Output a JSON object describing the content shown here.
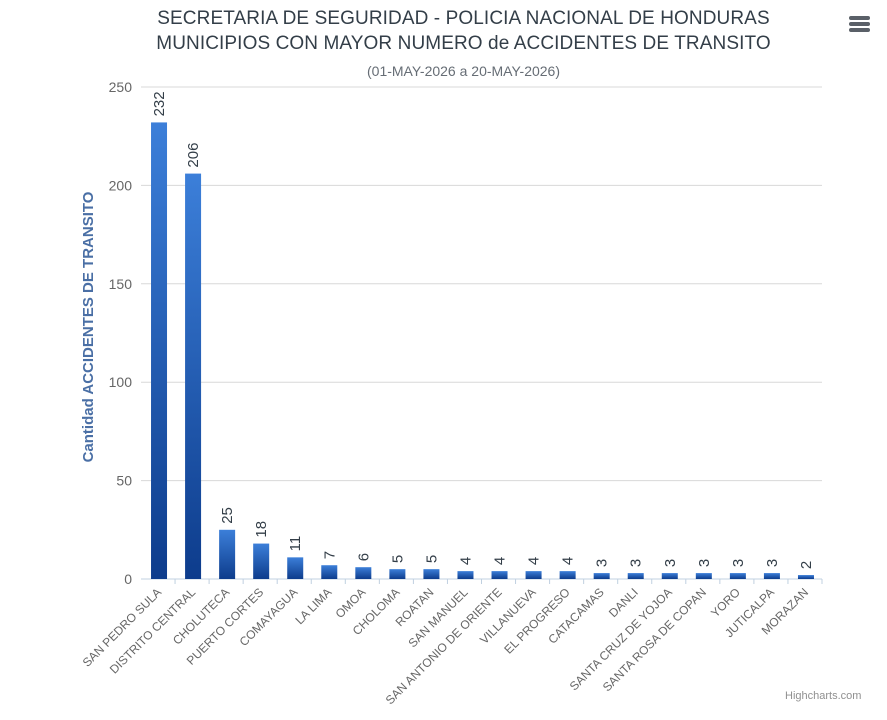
{
  "header": {
    "title_line1": "SECRETARIA DE SEGURIDAD - POLICIA NACIONAL DE HONDURAS",
    "title_line2": "MUNICIPIOS CON MAYOR NUMERO de ACCIDENTES DE TRANSITO",
    "subtitle": "(01-MAY-2026 a 20-MAY-2026)"
  },
  "menu": {
    "icon": "hamburger-menu-icon"
  },
  "credit": "Highcharts.com",
  "colors": {
    "bar_top": "#3c7fd9",
    "bar_bottom": "#0d3c8c",
    "axis_title": "#4a6fa5",
    "label": "#333e48",
    "tick": "#666666",
    "grid": "#d8d8d8"
  },
  "chart_data": {
    "type": "bar",
    "title": "SECRETARIA DE SEGURIDAD - POLICIA NACIONAL DE HONDURAS MUNICIPIOS CON MAYOR NUMERO de ACCIDENTES DE TRANSITO",
    "subtitle": "(01-MAY-2026 a 20-MAY-2026)",
    "xlabel": "",
    "ylabel": "Cantidad ACCIDENTES DE TRANSITO",
    "ylim": [
      0,
      250
    ],
    "yticks": [
      0,
      50,
      100,
      150,
      200,
      250
    ],
    "grid": true,
    "categories": [
      "SAN PEDRO SULA",
      "DISTRITO CENTRAL",
      "CHOLUTECA",
      "PUERTO CORTES",
      "COMAYAGUA",
      "LA LIMA",
      "OMOA",
      "CHOLOMA",
      "ROATAN",
      "SAN MANUEL",
      "SAN ANTONIO DE ORIENTE",
      "VILLANUEVA",
      "EL PROGRESO",
      "CATACAMAS",
      "DANLI",
      "SANTA CRUZ DE YOJOA",
      "SANTA ROSA DE COPAN",
      "YORO",
      "JUTICALPA",
      "MORAZAN"
    ],
    "values": [
      232,
      206,
      25,
      18,
      11,
      7,
      6,
      5,
      5,
      4,
      4,
      4,
      4,
      3,
      3,
      3,
      3,
      3,
      3,
      2
    ]
  }
}
